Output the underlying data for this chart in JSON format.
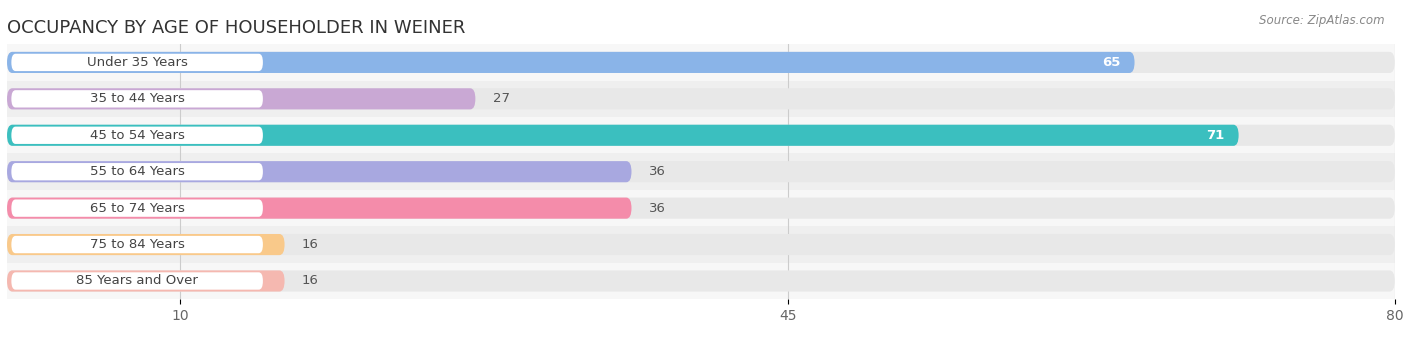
{
  "title": "OCCUPANCY BY AGE OF HOUSEHOLDER IN WEINER",
  "source": "Source: ZipAtlas.com",
  "categories": [
    "Under 35 Years",
    "35 to 44 Years",
    "45 to 54 Years",
    "55 to 64 Years",
    "65 to 74 Years",
    "75 to 84 Years",
    "85 Years and Over"
  ],
  "values": [
    65,
    27,
    71,
    36,
    36,
    16,
    16
  ],
  "bar_colors": [
    "#8ab4e8",
    "#c9a8d4",
    "#3bbfbf",
    "#a8a8e0",
    "#f48caa",
    "#f9c98a",
    "#f5b8b0"
  ],
  "bar_bg_color": "#e8e8e8",
  "row_bg_colors": [
    "#f7f7f7",
    "#efefef"
  ],
  "xlim": [
    0,
    80
  ],
  "xticks": [
    10,
    45,
    80
  ],
  "value_label_color_inside": "#ffffff",
  "value_label_color_outside": "#555555",
  "title_fontsize": 13,
  "label_fontsize": 9.5,
  "tick_fontsize": 10,
  "background_color": "#ffffff",
  "bar_height": 0.58,
  "label_pill_color": "#ffffff",
  "label_text_color": "#444444"
}
